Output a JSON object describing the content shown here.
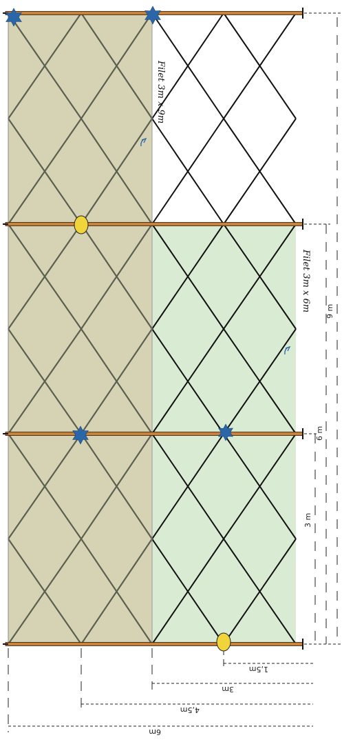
{
  "colors": {
    "net_3x9": "#d6d2b4",
    "net_3x6": "#d9ecd3",
    "cross_grey": "#5b5f50",
    "cross_black": "#111111",
    "cable": "#c8823a",
    "star": "#2a66a8",
    "pole_marker": "#f0d43a"
  },
  "labels": {
    "net_3x9": "Filet 3m x 9m",
    "net_3x6": "Filet 3m x 6m"
  },
  "dimensions": {
    "bottom": [
      "1,5m",
      "3m",
      "4,5m",
      "6m"
    ],
    "right": [
      "9 m",
      "6 m",
      "3 m"
    ]
  },
  "icons": {
    "tree": "blue-star-icon",
    "post": "yellow-oval-icon"
  }
}
